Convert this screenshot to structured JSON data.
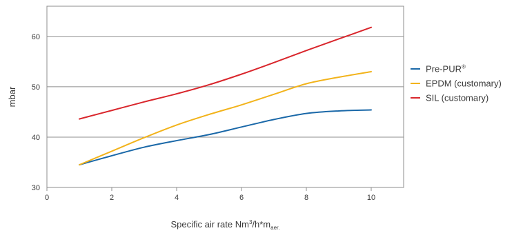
{
  "chart_data": {
    "type": "line",
    "ylabel": "mbar",
    "xlabel": {
      "prefix": "Specific air rate Nm",
      "sup": "3",
      "middle": "/h*m",
      "sub": "aer."
    },
    "xlim": [
      0,
      11
    ],
    "ylim": [
      30,
      66
    ],
    "xticks": [
      0,
      2,
      4,
      6,
      8,
      10
    ],
    "yticks": [
      30,
      40,
      50,
      60
    ],
    "grid": "horizontal",
    "legend_position": "right",
    "series": [
      {
        "name": "Pre-PUR",
        "name_sup": "®",
        "color": "#1a68a8",
        "x": [
          1,
          2,
          3,
          4,
          5,
          6,
          7,
          8,
          9,
          10
        ],
        "y": [
          34.5,
          36.3,
          38.0,
          39.3,
          40.5,
          42.0,
          43.5,
          44.7,
          45.2,
          45.4
        ]
      },
      {
        "name": "EPDM (customary)",
        "color": "#f2b31b",
        "x": [
          1,
          2,
          3,
          4,
          5,
          6,
          7,
          8,
          9,
          10
        ],
        "y": [
          34.5,
          37.2,
          39.9,
          42.4,
          44.5,
          46.4,
          48.5,
          50.6,
          51.9,
          53.0
        ]
      },
      {
        "name": "SIL (customary)",
        "color": "#d9262c",
        "x": [
          1,
          2,
          3,
          4,
          5,
          6,
          7,
          8,
          9,
          10
        ],
        "y": [
          43.6,
          45.3,
          47.0,
          48.6,
          50.4,
          52.5,
          54.8,
          57.2,
          59.5,
          61.8
        ]
      }
    ]
  }
}
